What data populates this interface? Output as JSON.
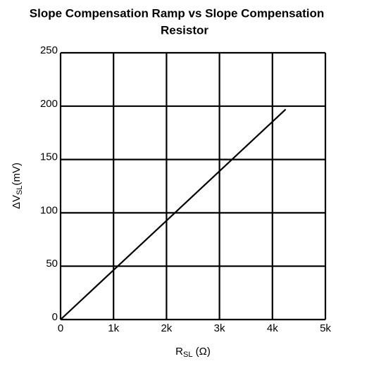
{
  "chart_data": {
    "type": "line",
    "title_lines": [
      "Slope Compensation Ramp vs Slope Compensation",
      "Resistor"
    ],
    "xlabel": {
      "main": "R",
      "sub": "SL",
      "unit": " (Ω)"
    },
    "ylabel": {
      "main": "ΔV",
      "sub": "SL",
      "unit": "(mV)"
    },
    "x": [
      0,
      4250
    ],
    "series": [
      {
        "color": "#000000",
        "values": [
          0,
          197
        ]
      }
    ],
    "xlim": [
      0,
      5000
    ],
    "xticks": [
      0,
      {
        "value": 1000,
        "label": "1k"
      },
      {
        "value": 2000,
        "label": "2k"
      },
      {
        "value": 3000,
        "label": "3k"
      },
      {
        "value": 4000,
        "label": "4k"
      },
      {
        "value": 5000,
        "label": "5k"
      }
    ],
    "ylim": [
      0,
      250
    ],
    "yticks": [
      0,
      50,
      100,
      150,
      200,
      250
    ],
    "grid": true
  }
}
